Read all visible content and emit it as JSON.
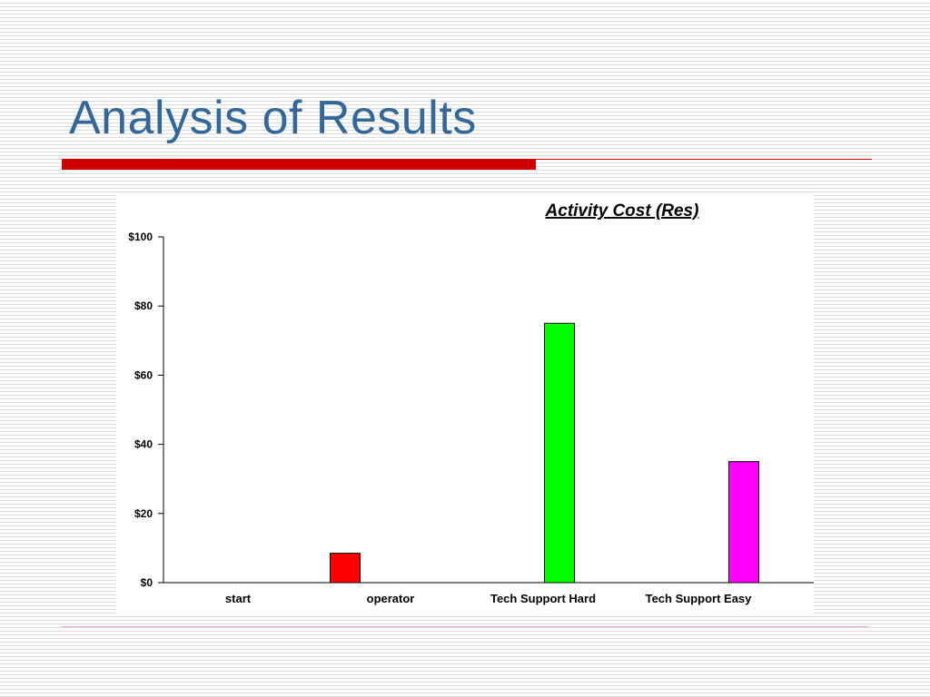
{
  "slide": {
    "title": "Analysis of Results"
  },
  "colors": {
    "title": "#336699",
    "rule": "#cc0000"
  },
  "chart_data": {
    "type": "bar",
    "title": "Activity Cost (Res)",
    "xlabel": "",
    "ylabel": "",
    "categories": [
      "start",
      "operator",
      "Tech Support Hard",
      "Tech Support Easy"
    ],
    "values": [
      0,
      8.5,
      75,
      35
    ],
    "colors": [
      "#ff0000",
      "#ff0000",
      "#00ff00",
      "#ff00ff"
    ],
    "ylim": [
      0,
      100
    ],
    "yticks": [
      0,
      20,
      40,
      60,
      80,
      100
    ],
    "ytick_labels": [
      "$0",
      "$20",
      "$40",
      "$60",
      "$80",
      "$100"
    ],
    "grid": false,
    "legend": "none"
  }
}
